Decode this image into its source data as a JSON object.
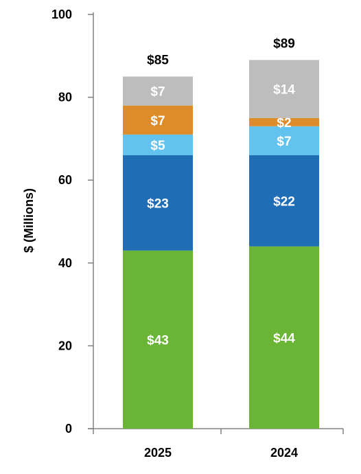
{
  "chart_data": {
    "type": "bar",
    "stacked": true,
    "categories": [
      "2025",
      "2024"
    ],
    "ylabel": "$ (Millions)",
    "ylim": [
      0,
      100
    ],
    "yticks": [
      0,
      20,
      40,
      60,
      80,
      100
    ],
    "grid": false,
    "series": [
      {
        "values": [
          43,
          44
        ],
        "labels": [
          "$43",
          "$44"
        ],
        "color": "#6ab536"
      },
      {
        "values": [
          23,
          22
        ],
        "labels": [
          "$23",
          "$22"
        ],
        "color": "#1f6db5"
      },
      {
        "values": [
          5,
          7
        ],
        "labels": [
          "$5",
          "$7"
        ],
        "color": "#62c3ef"
      },
      {
        "values": [
          7,
          2
        ],
        "labels": [
          "$7",
          "$2"
        ],
        "color": "#dc8c29"
      },
      {
        "values": [
          7,
          14
        ],
        "labels": [
          "$7",
          "$14"
        ],
        "color": "#bdbdbd"
      }
    ],
    "totals": [
      85,
      89
    ],
    "total_labels": [
      "$85",
      "$89"
    ]
  }
}
